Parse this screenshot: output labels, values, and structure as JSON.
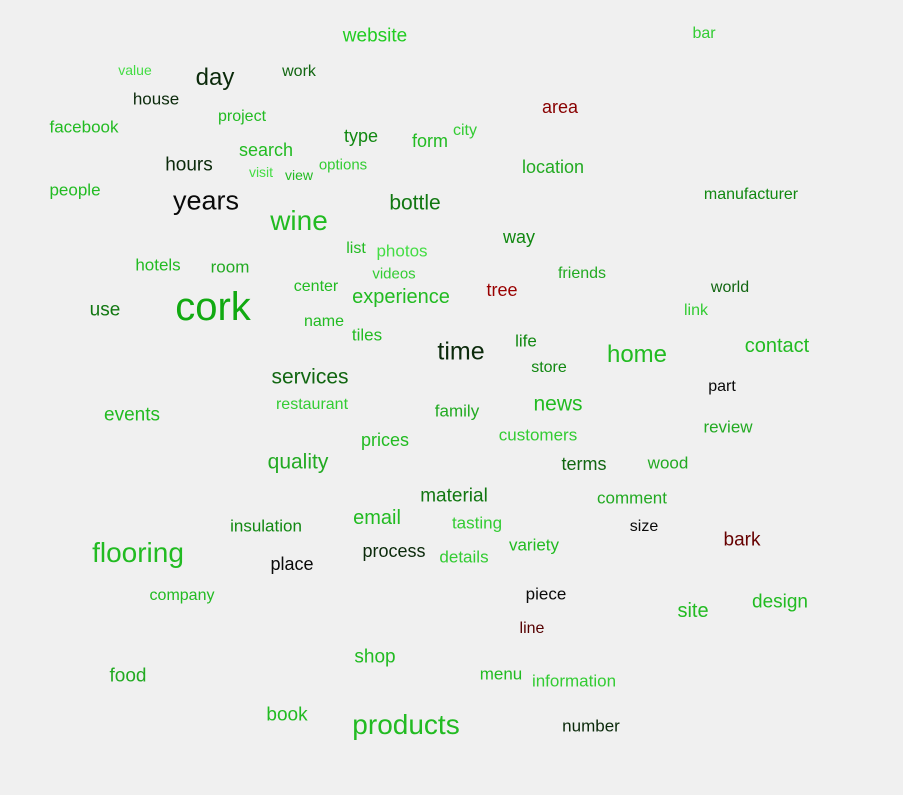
{
  "word_cloud": {
    "words": [
      {
        "text": "website",
        "color": "#22cc22"
      },
      {
        "text": "bar",
        "color": "#33cc33"
      },
      {
        "text": "value",
        "color": "#44dd44"
      },
      {
        "text": "day",
        "color": "#0b2a0b"
      },
      {
        "text": "work",
        "color": "#116611"
      },
      {
        "text": "house",
        "color": "#0b2a0b"
      },
      {
        "text": "area",
        "color": "#880000"
      },
      {
        "text": "project",
        "color": "#22bb22"
      },
      {
        "text": "facebook",
        "color": "#22bb22"
      },
      {
        "text": "type",
        "color": "#118811"
      },
      {
        "text": "city",
        "color": "#33cc33"
      },
      {
        "text": "form",
        "color": "#22bb22"
      },
      {
        "text": "search",
        "color": "#22bb22"
      },
      {
        "text": "hours",
        "color": "#0b2a0b"
      },
      {
        "text": "visit",
        "color": "#44dd44"
      },
      {
        "text": "view",
        "color": "#22bb22"
      },
      {
        "text": "options",
        "color": "#33cc33"
      },
      {
        "text": "location",
        "color": "#22aa22"
      },
      {
        "text": "people",
        "color": "#22bb22"
      },
      {
        "text": "years",
        "color": "#0a0a0a"
      },
      {
        "text": "bottle",
        "color": "#117711"
      },
      {
        "text": "manufacturer",
        "color": "#118811"
      },
      {
        "text": "wine",
        "color": "#22bb22"
      },
      {
        "text": "way",
        "color": "#118811"
      },
      {
        "text": "list",
        "color": "#22bb22"
      },
      {
        "text": "photos",
        "color": "#44dd44"
      },
      {
        "text": "hotels",
        "color": "#22bb22"
      },
      {
        "text": "room",
        "color": "#22aa22"
      },
      {
        "text": "videos",
        "color": "#33cc33"
      },
      {
        "text": "friends",
        "color": "#22aa22"
      },
      {
        "text": "world",
        "color": "#116611"
      },
      {
        "text": "center",
        "color": "#22bb22"
      },
      {
        "text": "tree",
        "color": "#990000"
      },
      {
        "text": "experience",
        "color": "#22bb22"
      },
      {
        "text": "cork",
        "color": "#11aa11"
      },
      {
        "text": "use",
        "color": "#117711"
      },
      {
        "text": "link",
        "color": "#33cc33"
      },
      {
        "text": "name",
        "color": "#22bb22"
      },
      {
        "text": "tiles",
        "color": "#22bb22"
      },
      {
        "text": "life",
        "color": "#118811"
      },
      {
        "text": "contact",
        "color": "#22bb22"
      },
      {
        "text": "time",
        "color": "#0b2a0b"
      },
      {
        "text": "home",
        "color": "#22bb22"
      },
      {
        "text": "store",
        "color": "#118811"
      },
      {
        "text": "services",
        "color": "#116611"
      },
      {
        "text": "part",
        "color": "#0a0a0a"
      },
      {
        "text": "restaurant",
        "color": "#33cc33"
      },
      {
        "text": "news",
        "color": "#22bb22"
      },
      {
        "text": "events",
        "color": "#22bb22"
      },
      {
        "text": "family",
        "color": "#22aa22"
      },
      {
        "text": "review",
        "color": "#22aa22"
      },
      {
        "text": "customers",
        "color": "#33cc33"
      },
      {
        "text": "prices",
        "color": "#22bb22"
      },
      {
        "text": "quality",
        "color": "#22aa22"
      },
      {
        "text": "terms",
        "color": "#116611"
      },
      {
        "text": "wood",
        "color": "#22aa22"
      },
      {
        "text": "material",
        "color": "#117711"
      },
      {
        "text": "comment",
        "color": "#22aa22"
      },
      {
        "text": "email",
        "color": "#22bb22"
      },
      {
        "text": "tasting",
        "color": "#33cc33"
      },
      {
        "text": "insulation",
        "color": "#118811"
      },
      {
        "text": "size",
        "color": "#0a0a0a"
      },
      {
        "text": "bark",
        "color": "#660000"
      },
      {
        "text": "variety",
        "color": "#22bb22"
      },
      {
        "text": "flooring",
        "color": "#22bb22"
      },
      {
        "text": "process",
        "color": "#0b2a0b"
      },
      {
        "text": "details",
        "color": "#33cc33"
      },
      {
        "text": "place",
        "color": "#0a0a0a"
      },
      {
        "text": "piece",
        "color": "#0a0a0a"
      },
      {
        "text": "company",
        "color": "#22bb22"
      },
      {
        "text": "design",
        "color": "#22bb22"
      },
      {
        "text": "site",
        "color": "#22bb22"
      },
      {
        "text": "line",
        "color": "#550000"
      },
      {
        "text": "shop",
        "color": "#22bb22"
      },
      {
        "text": "food",
        "color": "#22aa22"
      },
      {
        "text": "menu",
        "color": "#22bb22"
      },
      {
        "text": "information",
        "color": "#33cc33"
      },
      {
        "text": "book",
        "color": "#22bb22"
      },
      {
        "text": "products",
        "color": "#22bb22"
      },
      {
        "text": "number",
        "color": "#0b2a0b"
      }
    ]
  }
}
